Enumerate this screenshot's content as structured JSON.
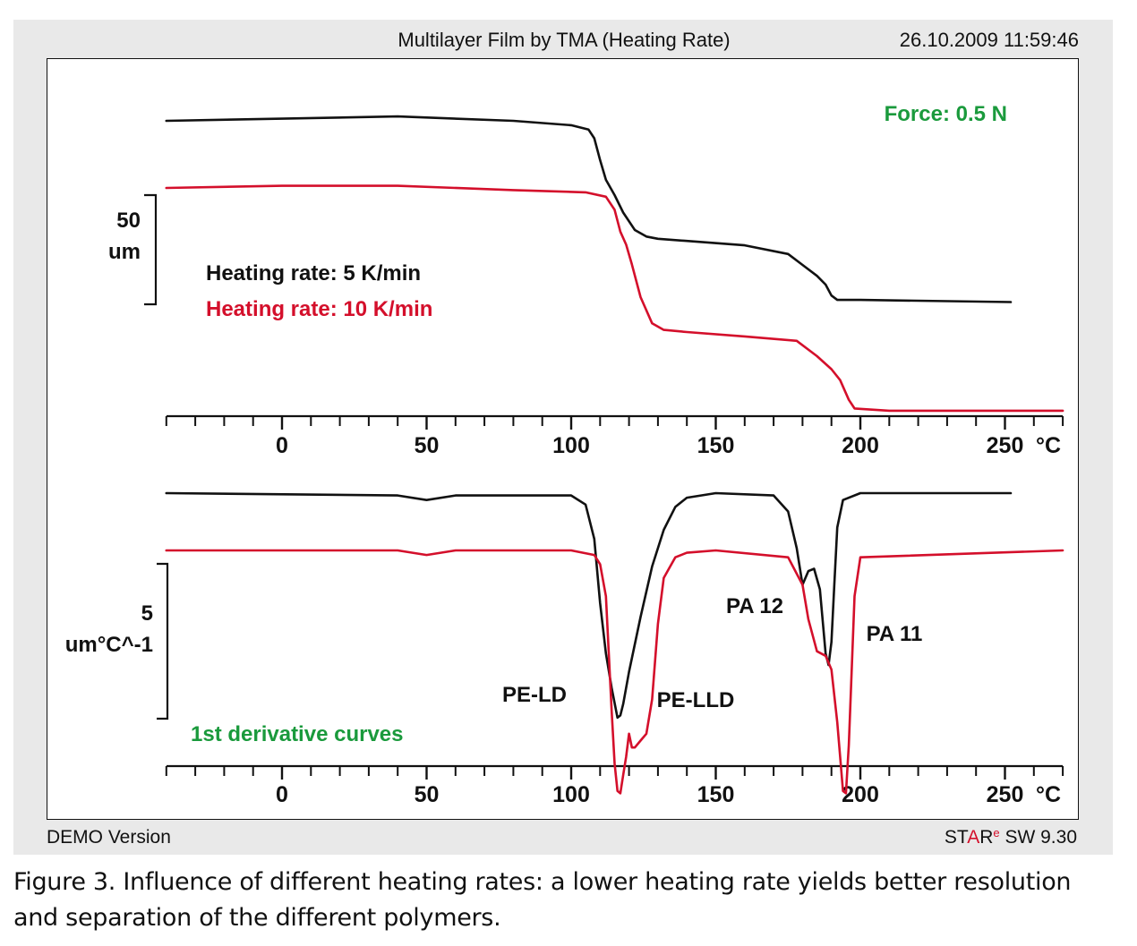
{
  "header": {
    "title": "Multilayer Film by TMA (Heating Rate)",
    "datetime": "26.10.2009 11:59:46"
  },
  "footer": {
    "demo": "DEMO Version",
    "software_star": "STAR",
    "software_sup": "e",
    "software_version": " SW 9.30"
  },
  "caption": "Figure 3. Influence of different heating rates: a lower heating rate yields better resolution and separation of the different polymers.",
  "colors": {
    "rate5": "#111111",
    "rate10": "#d40f2b",
    "green": "#1a9a3c",
    "star_red": "#d40f2b"
  },
  "chart_data": [
    {
      "type": "line",
      "title": "Multilayer Film by TMA (Heating Rate)",
      "annotation": "Force: 0.5 N",
      "xlabel": "°C",
      "xlim": [
        -40,
        270
      ],
      "xticks": [
        0,
        50,
        100,
        150,
        200,
        250
      ],
      "y_scale_bar": {
        "value": "50",
        "unit": "um"
      },
      "series": [
        {
          "name": "Heating rate: 5 K/min",
          "color": "#111111",
          "x": [
            -40,
            0,
            40,
            80,
            100,
            106,
            108,
            110,
            112,
            115,
            118,
            122,
            126,
            130,
            140,
            160,
            175,
            180,
            185,
            188,
            190,
            192,
            200,
            252
          ],
          "y": [
            0,
            1,
            2,
            0,
            -2,
            -4,
            -8,
            -18,
            -27,
            -34,
            -42,
            -50,
            -53,
            -54,
            -55,
            -57,
            -61,
            -66,
            -71,
            -75,
            -80,
            -82,
            -82,
            -83
          ]
        },
        {
          "name": "Heating rate: 10 K/min",
          "color": "#d40f2b",
          "x": [
            -40,
            0,
            40,
            80,
            105,
            112,
            115,
            117,
            119,
            121,
            124,
            128,
            132,
            140,
            160,
            178,
            185,
            190,
            193,
            196,
            198,
            210,
            270
          ],
          "y": [
            0,
            1,
            1,
            -1,
            -2,
            -4,
            -10,
            -20,
            -26,
            -35,
            -50,
            -62,
            -65,
            -66,
            -68,
            -70,
            -77,
            -83,
            -88,
            -97,
            -101,
            -102,
            -102
          ]
        }
      ]
    },
    {
      "type": "line",
      "annotation": "1st derivative curves",
      "xlabel": "°C",
      "xlim": [
        -40,
        270
      ],
      "xticks": [
        0,
        50,
        100,
        150,
        200,
        250
      ],
      "y_scale_bar": {
        "value": "5",
        "unit": "um°C^-1"
      },
      "peak_labels": [
        "PE-LD",
        "PE-LLD",
        "PA 12",
        "PA 11"
      ],
      "series": [
        {
          "name": "Heating rate: 5 K/min",
          "color": "#111111",
          "x": [
            -40,
            40,
            50,
            60,
            100,
            105,
            108,
            110,
            112,
            114,
            116,
            117,
            118,
            120,
            124,
            128,
            132,
            136,
            140,
            150,
            170,
            175,
            178,
            180,
            182,
            184,
            186,
            188,
            189,
            190,
            191,
            192,
            194,
            200,
            252
          ],
          "y": [
            0,
            -0.1,
            -0.3,
            -0.1,
            -0.1,
            -0.5,
            -2.0,
            -4.8,
            -7.0,
            -8.5,
            -9.8,
            -9.7,
            -9.2,
            -7.8,
            -5.4,
            -3.2,
            -1.6,
            -0.6,
            -0.2,
            0,
            -0.1,
            -0.8,
            -2.4,
            -4.0,
            -3.4,
            -3.3,
            -4.2,
            -7.0,
            -7.5,
            -6.5,
            -4.0,
            -1.5,
            -0.3,
            0,
            0
          ]
        },
        {
          "name": "Heating rate: 10 K/min",
          "color": "#d40f2b",
          "x": [
            -40,
            40,
            50,
            60,
            100,
            108,
            110,
            112,
            113,
            114,
            115,
            116,
            117,
            118,
            119,
            120,
            121,
            122,
            124,
            126,
            128,
            130,
            132,
            136,
            140,
            150,
            175,
            180,
            182,
            185,
            188,
            190,
            192,
            194,
            195,
            196,
            198,
            200,
            270
          ],
          "y": [
            0,
            0,
            -0.2,
            0,
            0,
            -0.2,
            -0.6,
            -2.0,
            -4.5,
            -7.0,
            -9.3,
            -10.5,
            -10.6,
            -9.8,
            -9.0,
            -8.0,
            -8.6,
            -8.6,
            -8.3,
            -8.0,
            -6.5,
            -3.2,
            -1.2,
            -0.3,
            -0.1,
            0,
            -0.3,
            -1.5,
            -3.0,
            -4.4,
            -4.6,
            -5.2,
            -7.5,
            -10.5,
            -10.6,
            -8.5,
            -2.0,
            -0.3,
            0
          ]
        }
      ]
    }
  ]
}
